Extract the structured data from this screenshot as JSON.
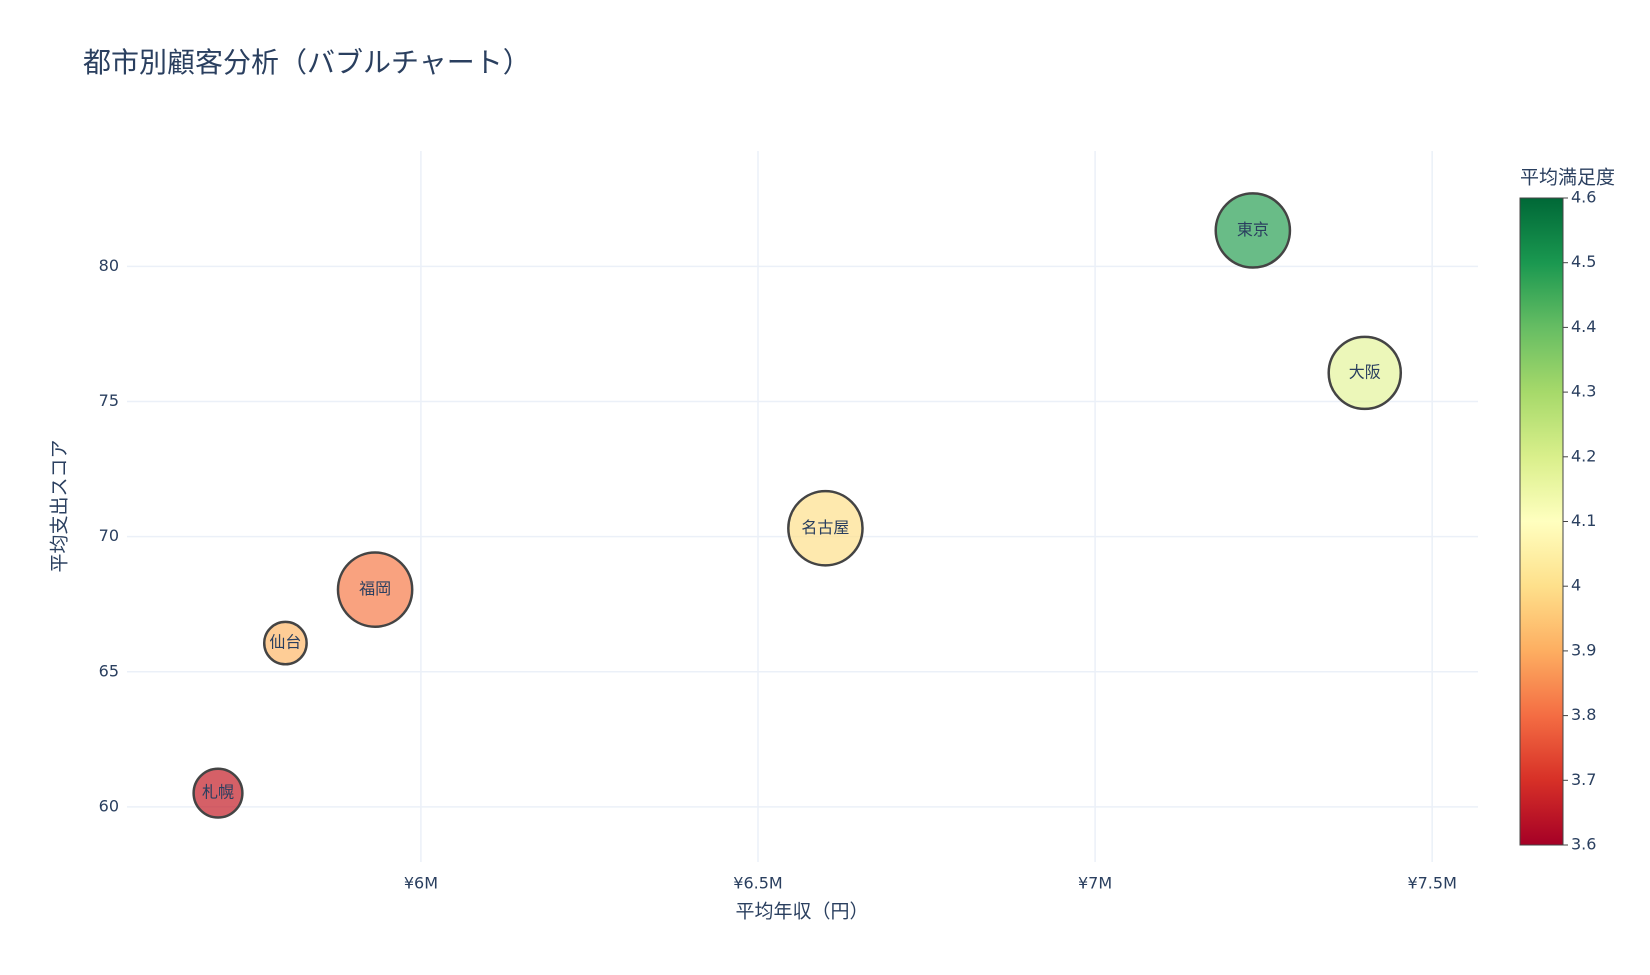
{
  "chart_data": {
    "type": "bubble",
    "title": "都市別顧客分析（バブルチャート）",
    "x_label": "平均年収（円）",
    "y_label": "平均支出スコア",
    "categories": [
      "東京",
      "大阪",
      "名古屋",
      "福岡",
      "仙台",
      "札幌"
    ],
    "x": [
      7234000,
      7400000,
      6600000,
      5932000,
      5799000,
      5699000
    ],
    "values": [
      81.33,
      76.06,
      70.31,
      68.04,
      66.06,
      60.51
    ],
    "sizes": [
      70,
      68,
      70,
      70,
      40,
      46
    ],
    "color_values": [
      4.48,
      4.17,
      4.0,
      3.82,
      3.92,
      3.66
    ],
    "colorscale": "RdYlGn",
    "colorbar_title": "平均満足度",
    "clim": [
      3.6,
      4.6
    ],
    "cticks": [
      3.6,
      3.7,
      3.8,
      3.9,
      4,
      4.1,
      4.2,
      4.3,
      4.4,
      4.5,
      4.6
    ],
    "xlim": [
      5564000,
      7568000
    ],
    "xticks": [
      {
        "value": 6000000,
        "label": "¥6M"
      },
      {
        "value": 6500000,
        "label": "¥6.5M"
      },
      {
        "value": 7000000,
        "label": "¥7M"
      },
      {
        "value": 7500000,
        "label": "¥7.5M"
      }
    ],
    "ylim": [
      57.96,
      84.27
    ],
    "yticks": [
      60,
      65,
      70,
      75,
      80
    ],
    "grid": true
  }
}
